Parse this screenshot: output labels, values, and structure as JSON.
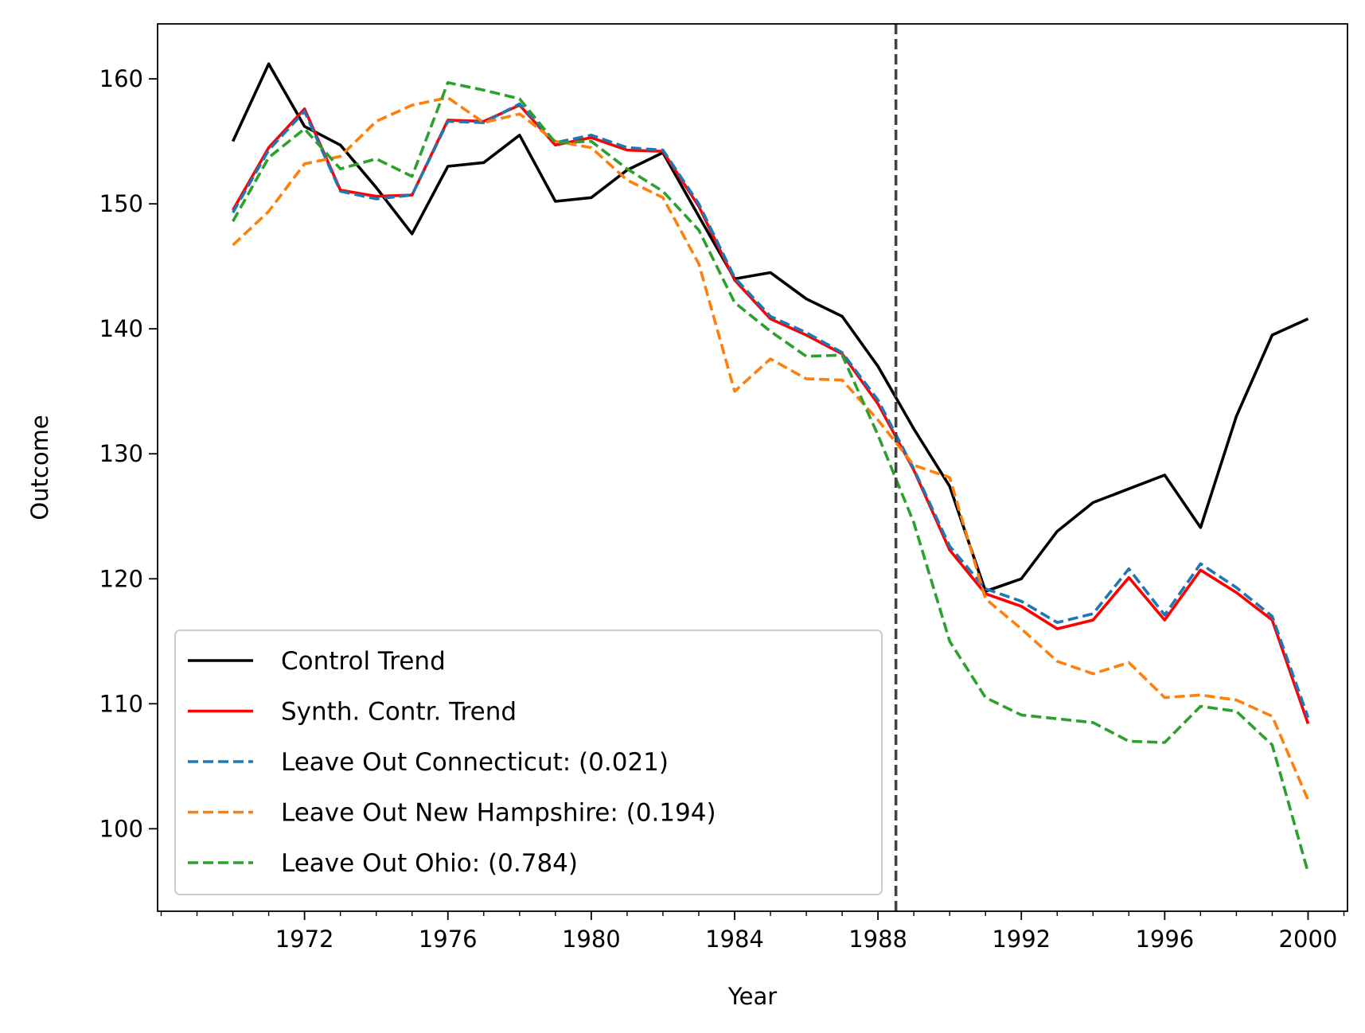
{
  "chart_data": {
    "type": "line",
    "title": "",
    "xlabel": "Year",
    "ylabel": "Outcome",
    "xlim": [
      1967.9,
      2001.1
    ],
    "ylim": [
      93.4,
      164.4
    ],
    "x": [
      1970,
      1971,
      1972,
      1973,
      1974,
      1975,
      1976,
      1977,
      1978,
      1979,
      1980,
      1981,
      1982,
      1983,
      1984,
      1985,
      1986,
      1987,
      1988,
      1989,
      1990,
      1991,
      1992,
      1993,
      1994,
      1995,
      1996,
      1997,
      1998,
      1999,
      2000
    ],
    "xticks": [
      1972,
      1976,
      1980,
      1984,
      1988,
      1992,
      1996,
      2000
    ],
    "xtick_labels": [
      "1972",
      "1976",
      "1980",
      "1984",
      "1988",
      "1992",
      "1996",
      "2000"
    ],
    "yticks": [
      100,
      110,
      120,
      130,
      140,
      150,
      160
    ],
    "ytick_labels": [
      "100",
      "110",
      "120",
      "130",
      "140",
      "150",
      "160"
    ],
    "treatment_line_x": 1988.5,
    "series": [
      {
        "name": "Control Trend",
        "color": "#000000",
        "style": "solid",
        "values": [
          155.0,
          161.2,
          156.2,
          154.7,
          151.3,
          147.6,
          153.0,
          153.3,
          155.5,
          150.2,
          150.5,
          152.7,
          154.1,
          149.0,
          144.0,
          144.5,
          142.4,
          141.0,
          137.0,
          132.0,
          127.4,
          119.0,
          120.0,
          123.8,
          126.1,
          127.2,
          128.3,
          124.1,
          133.0,
          139.5,
          140.8
        ]
      },
      {
        "name": "Synth. Contr. Trend",
        "color": "#ff0000",
        "style": "solid",
        "values": [
          149.5,
          154.5,
          157.6,
          151.1,
          150.6,
          150.7,
          156.7,
          156.6,
          157.9,
          154.7,
          155.3,
          154.3,
          154.2,
          149.8,
          143.9,
          140.8,
          139.5,
          138.0,
          134.0,
          128.7,
          122.3,
          118.8,
          117.8,
          116.0,
          116.7,
          120.1,
          116.7,
          120.7,
          118.9,
          116.7,
          108.4
        ]
      },
      {
        "name": "Leave Out Connecticut: (0.021)",
        "color": "#1f77b4",
        "style": "dashed",
        "values": [
          149.3,
          154.3,
          157.4,
          151.0,
          150.4,
          150.7,
          156.6,
          156.5,
          158.0,
          154.9,
          155.5,
          154.5,
          154.3,
          150.0,
          144.1,
          141.0,
          139.7,
          138.1,
          134.3,
          128.8,
          122.6,
          119.2,
          118.2,
          116.5,
          117.2,
          120.8,
          117.1,
          121.2,
          119.3,
          117.0,
          108.9
        ]
      },
      {
        "name": "Leave Out New Hampshire: (0.194)",
        "color": "#ff7f0e",
        "style": "dashed",
        "values": [
          146.7,
          149.4,
          153.2,
          153.8,
          156.6,
          157.9,
          158.5,
          156.5,
          157.2,
          155.0,
          154.5,
          151.9,
          150.5,
          145.2,
          135.0,
          137.6,
          136.0,
          135.9,
          132.7,
          129.1,
          128.1,
          118.4,
          116.0,
          113.4,
          112.4,
          113.3,
          110.5,
          110.7,
          110.3,
          109.0,
          102.3
        ]
      },
      {
        "name": "Leave Out Ohio: (0.784)",
        "color": "#2ca02c",
        "style": "dashed",
        "values": [
          148.6,
          153.7,
          156.0,
          152.8,
          153.6,
          152.2,
          159.7,
          159.1,
          158.4,
          154.9,
          155.0,
          152.8,
          151.0,
          147.9,
          142.1,
          139.8,
          137.8,
          137.9,
          131.5,
          124.5,
          115.0,
          110.5,
          109.1,
          108.8,
          108.5,
          107.0,
          106.9,
          109.8,
          109.4,
          106.7,
          96.5
        ]
      }
    ],
    "legend": {
      "placement": "lower-left",
      "entries": [
        "Control Trend",
        "Synth. Contr. Trend",
        "Leave Out Connecticut: (0.021)",
        "Leave Out New Hampshire: (0.194)",
        "Leave Out Ohio: (0.784)"
      ]
    },
    "grid": false
  }
}
